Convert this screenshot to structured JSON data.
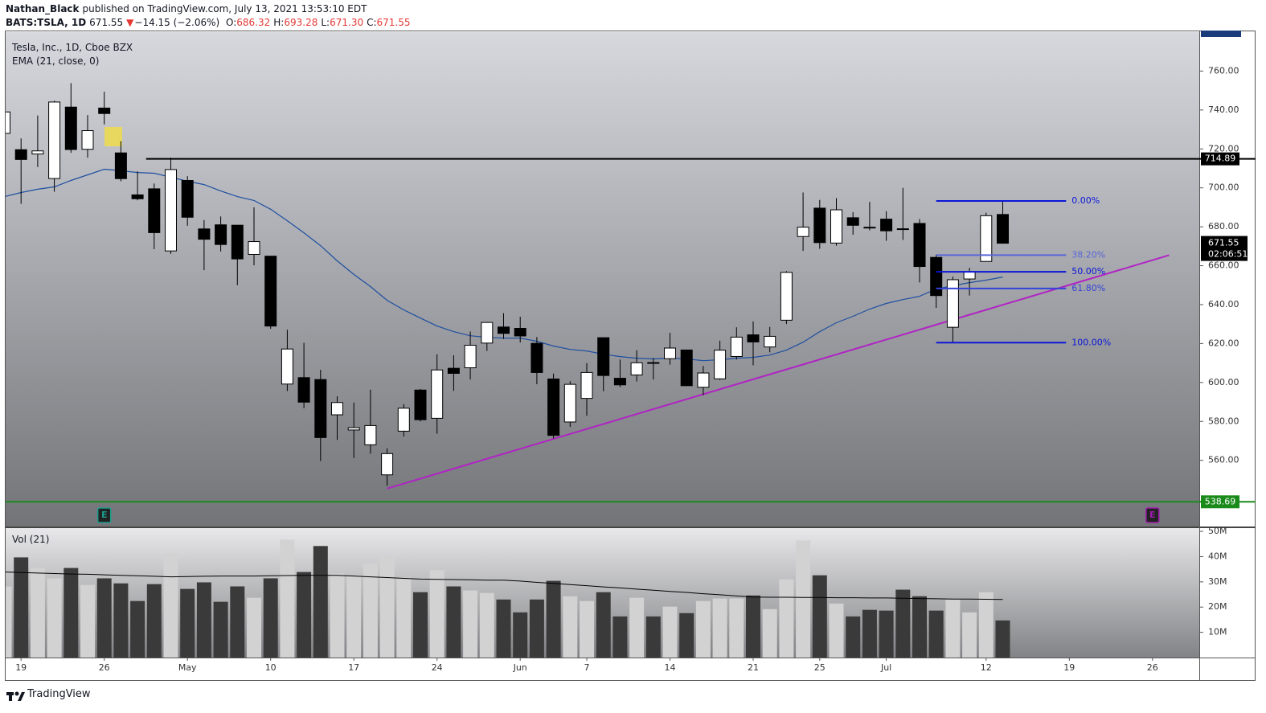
{
  "header": {
    "author": "Nathan_Black",
    "published": "published on TradingView.com, July 13, 2021 13:53:10 EDT",
    "symbol": "BATS:TSLA, 1D",
    "last": "671.55",
    "arrow": "▼",
    "change": "−14.15 (−2.06%)",
    "ohlc": [
      {
        "label": "O:",
        "value": "686.32"
      },
      {
        "label": "H:",
        "value": "693.28"
      },
      {
        "label": "L:",
        "value": "671.30"
      },
      {
        "label": "C:",
        "value": "671.55"
      }
    ]
  },
  "footer": {
    "brand": "TradingView"
  },
  "chart_data": {
    "type": "candlestick",
    "title": "Tesla, Inc., 1D, Cboe BZX",
    "categories": [
      null,
      "19",
      null,
      null,
      null,
      null,
      "26",
      null,
      null,
      null,
      null,
      "May",
      null,
      null,
      null,
      null,
      "10",
      null,
      null,
      null,
      null,
      "17",
      null,
      null,
      null,
      null,
      "24",
      null,
      null,
      null,
      null,
      "Jun",
      null,
      null,
      null,
      "7",
      null,
      null,
      null,
      null,
      "14",
      null,
      null,
      null,
      null,
      "21",
      null,
      null,
      null,
      "25",
      null,
      null,
      null,
      "Jul",
      null,
      null,
      null,
      null,
      null,
      "12",
      null,
      null,
      null,
      null,
      "19",
      null,
      null,
      null,
      null,
      "26",
      null,
      null
    ],
    "open": [
      728,
      719.6,
      717.4,
      704.8,
      741.5,
      719.8,
      741,
      717.96,
      696.4,
      699.5,
      667.6,
      703.8,
      678.9,
      681,
      680.8,
      665.8,
      664.9,
      599.2,
      602.5,
      601.5,
      583.4,
      575.6,
      568,
      552.55,
      575,
      596.1,
      581.6,
      607.3,
      607.56,
      620.24,
      628.5,
      627.8,
      620.13,
      601.8,
      579.71,
      591.83,
      623.01,
      602.17,
      603.88,
      610.23,
      612.23,
      616.69,
      597.54,
      601.89,
      613.37,
      624.48,
      618.25,
      632,
      674.99,
      689.58,
      671.64,
      684.65,
      679.77,
      683.92,
      678.98,
      681.71,
      664.27,
      628.37,
      653.18,
      662.2,
      686.32,
      null,
      null,
      null,
      null,
      null,
      null,
      null,
      null,
      null,
      null,
      null
    ],
    "high": [
      740,
      725.4,
      737.2,
      744.8,
      753.8,
      737.4,
      749.4,
      724,
      708.5,
      702.25,
      715.5,
      706,
      683.45,
      685.3,
      681,
      690,
      665,
      627.1,
      620.4,
      606.5,
      592.9,
      589.7,
      596.3,
      566.2,
      588.85,
      596.7,
      614.5,
      613.99,
      626.17,
      631.13,
      635.59,
      633.8,
      623.36,
      604.55,
      600.61,
      610,
      623.09,
      611.79,
      616.59,
      612.56,
      625.49,
      616.79,
      608.5,
      621.47,
      628.35,
      631.39,
      628.57,
      657.2,
      697.62,
      693.81,
      694.7,
      687.51,
      692.81,
      687.99,
      700,
      684,
      665.7,
      654.43,
      658.91,
      687.24,
      693.28,
      null,
      null,
      null,
      null,
      null,
      null,
      null,
      null,
      null,
      null,
      null
    ],
    "low": [
      725,
      691.8,
      710.7,
      698,
      718,
      715.5,
      732.6,
      703.35,
      693.6,
      668.5,
      666.1,
      680.5,
      657.7,
      667.3,
      650,
      660.2,
      627.6,
      595.6,
      586.8,
      559.65,
      570.5,
      561.2,
      563.4,
      546.98,
      572.2,
      580,
      573.65,
      595.7,
      601.5,
      616.21,
      622.38,
      620.55,
      599.14,
      571.22,
      577.2,
      582.88,
      595.5,
      597.63,
      600.5,
      601.52,
      609.18,
      598.23,
      593.5,
      601.34,
      611.8,
      608.88,
      615.5,
      630.04,
      667.61,
      668.7,
      670.32,
      675.89,
      678.14,
      672.8,
      673.26,
      651.4,
      638.32,
      620.46,
      644.69,
      662.16,
      671.3,
      null,
      null,
      null,
      null,
      null,
      null,
      null,
      null,
      null,
      null,
      null
    ],
    "close": [
      739,
      714.6,
      718.99,
      744.1,
      719.7,
      729.4,
      738.2,
      704.74,
      694.4,
      677,
      709.4,
      684.9,
      673.6,
      670.9,
      663.5,
      672.4,
      629,
      617.2,
      589.9,
      571.7,
      589.7,
      576.8,
      577.87,
      563.46,
      586.78,
      580.88,
      606.44,
      604.69,
      619.13,
      630.85,
      625.22,
      623.9,
      605.12,
      572.84,
      599.05,
      605.13,
      603.59,
      598.78,
      610.12,
      609.89,
      617.69,
      598.36,
      604.87,
      616.6,
      623.31,
      620.83,
      623.71,
      656.57,
      679.82,
      671.87,
      688.72,
      680.76,
      679.7,
      677.92,
      678.9,
      659.58,
      644.65,
      652.81,
      656.95,
      685.7,
      671.55,
      null,
      null,
      null,
      null,
      null,
      null,
      null,
      null,
      null,
      null,
      null
    ],
    "up_color": "#ffffff",
    "down_color": "#000000",
    "ylim": [
      526,
      780
    ],
    "yticks": [
      {
        "value": 560,
        "label": "560.00"
      },
      {
        "value": 580,
        "label": "580.00"
      },
      {
        "value": 600,
        "label": "600.00"
      },
      {
        "value": 620,
        "label": "620.00"
      },
      {
        "value": 640,
        "label": "640.00"
      },
      {
        "value": 660,
        "label": "660.00"
      },
      {
        "value": 680,
        "label": "680.00"
      },
      {
        "value": 700,
        "label": "700.00"
      },
      {
        "value": 720,
        "label": "720.00"
      },
      {
        "value": 740,
        "label": "740.00"
      },
      {
        "value": 760,
        "label": "760.00"
      }
    ],
    "countdown": "02:06:51",
    "indicators": [
      {
        "name": "EMA (21, close, 0)",
        "color": "#1e4fa0",
        "values": [
          695.5,
          697.6,
          699.3,
          700.5,
          703.8,
          706.7,
          709.6,
          708.8,
          707.9,
          707.5,
          705.5,
          703.4,
          701.7,
          698.4,
          695.5,
          693.5,
          689,
          683.1,
          676.9,
          670.3,
          662.5,
          655.5,
          649.3,
          642.2,
          637.3,
          633.1,
          629,
          626.1,
          624,
          623.2,
          622.8,
          622.8,
          621.2,
          618.7,
          617,
          616.2,
          614.5,
          613.3,
          612.5,
          612.1,
          612.5,
          612.1,
          611.2,
          611.7,
          612.5,
          612.9,
          614.1,
          616.6,
          620.7,
          626.1,
          630.7,
          634,
          637.7,
          640.6,
          642.6,
          644.3,
          648,
          649.7,
          651.3,
          652.6,
          654.2,
          null,
          null,
          null,
          null,
          null,
          null,
          null,
          null,
          null,
          null,
          null
        ]
      }
    ],
    "levels": [
      {
        "value": 714.89,
        "color": "#000000",
        "from": 9
      },
      {
        "value": 538.69,
        "color": "#1a8a1a",
        "from": 0
      }
    ],
    "trendline": {
      "x": [
        23,
        70
      ],
      "values": [
        545.5,
        665.4
      ],
      "color": "#b023c4"
    },
    "fib": {
      "x": [
        56,
        64
      ],
      "high": 693.28,
      "low": 620.46,
      "levels": [
        {
          "value": 0,
          "label": "0.00%",
          "color": "#0a16d8"
        },
        {
          "value": 38.2,
          "label": "38.20%",
          "color": "#5866d8"
        },
        {
          "value": 50,
          "label": "50.00%",
          "color": "#0a16d8"
        },
        {
          "value": 61.8,
          "label": "61.80%",
          "color": "#3443d8"
        },
        {
          "value": 100,
          "label": "100.00%",
          "color": "#0a16d8"
        }
      ]
    },
    "events": [
      {
        "x": 6,
        "label": "E",
        "color": "#1a9c8c"
      },
      {
        "x": 69,
        "label": "E",
        "color": "#a01ab0"
      }
    ],
    "volume": {
      "title": "Vol (21)",
      "up_color": "#d2d2d2",
      "down_color": "#3a3a3a",
      "ma_color": "#000000",
      "values": [
        28.2,
        39.7,
        35.5,
        31.4,
        35.5,
        28.8,
        31.4,
        29.4,
        22.4,
        29.1,
        41,
        27.2,
        29.8,
        22.1,
        28.2,
        23.7,
        31.4,
        46.7,
        33.9,
        44.2,
        33.3,
        32.6,
        37.1,
        40,
        31.7,
        25.9,
        34.6,
        28.2,
        26.6,
        25.6,
        23,
        17.9,
        23,
        30.4,
        24.3,
        22.4,
        25.9,
        16.3,
        23.7,
        16.3,
        20.2,
        17.6,
        22.4,
        23.4,
        23.4,
        24.6,
        19.2,
        31,
        46.4,
        32.6,
        21.4,
        16.3,
        18.9,
        18.6,
        26.9,
        24.3,
        18.6,
        23,
        17.9,
        25.9,
        14.7,
        null,
        null,
        null,
        null,
        null,
        null,
        null,
        null,
        null,
        null,
        null
      ],
      "ma": [
        33.9,
        33.7,
        33.5,
        33.3,
        33.1,
        33,
        32.8,
        32.6,
        32.4,
        32.2,
        32,
        32.1,
        32.2,
        32.3,
        32.3,
        32.3,
        32.4,
        32.5,
        32.6,
        32.6,
        32.6,
        32.3,
        32,
        31.7,
        31.4,
        31.1,
        31,
        30.9,
        30.8,
        30.7,
        30.7,
        30.3,
        29.8,
        29.4,
        28.9,
        28.5,
        28,
        27.6,
        27.1,
        26.7,
        26.2,
        25.8,
        25.3,
        24.9,
        24.4,
        24,
        23.9,
        23.9,
        23.8,
        23.8,
        23.7,
        23.7,
        23.6,
        23.6,
        23.5,
        23.4,
        23.3,
        23.2,
        23.2,
        23.1,
        23,
        null,
        null,
        null,
        null,
        null,
        null,
        null,
        null,
        null,
        null,
        null
      ],
      "ylim": [
        0,
        51.3
      ],
      "yticks": [
        {
          "value": 10,
          "label": "10M"
        },
        {
          "value": 20,
          "label": "20M"
        },
        {
          "value": 30,
          "label": "30M"
        },
        {
          "value": 40,
          "label": "40M"
        },
        {
          "value": 50,
          "label": "50M"
        }
      ]
    }
  }
}
